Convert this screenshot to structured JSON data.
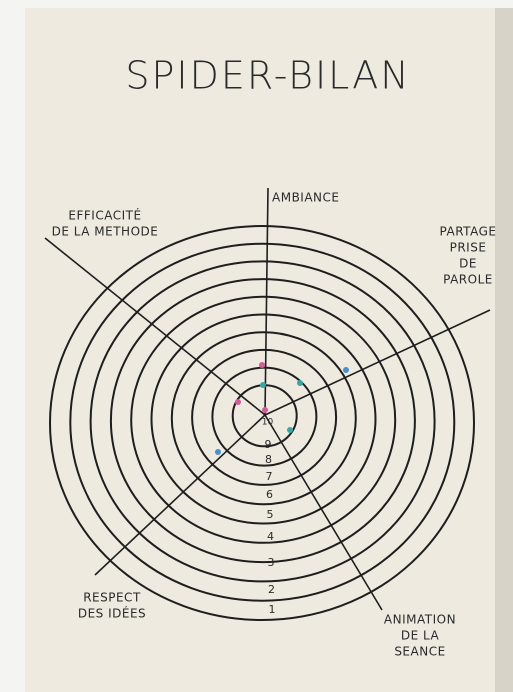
{
  "title": "SPIDER-BILAN",
  "axes": [
    {
      "lines": [
        "AMBIANCE"
      ]
    },
    {
      "lines": [
        "PARTAGE",
        "PRISE",
        "DE",
        "PAROLE"
      ]
    },
    {
      "lines": [
        "ANIMATION",
        "DE LA",
        "SEANCE"
      ]
    },
    {
      "lines": [
        "RESPECT",
        "DES IDÉES"
      ]
    },
    {
      "lines": [
        "EFFICACITÉ",
        "DE LA METHODE"
      ]
    }
  ],
  "rings": [
    1,
    2,
    3,
    4,
    5,
    6,
    7,
    8,
    9,
    10
  ]
}
